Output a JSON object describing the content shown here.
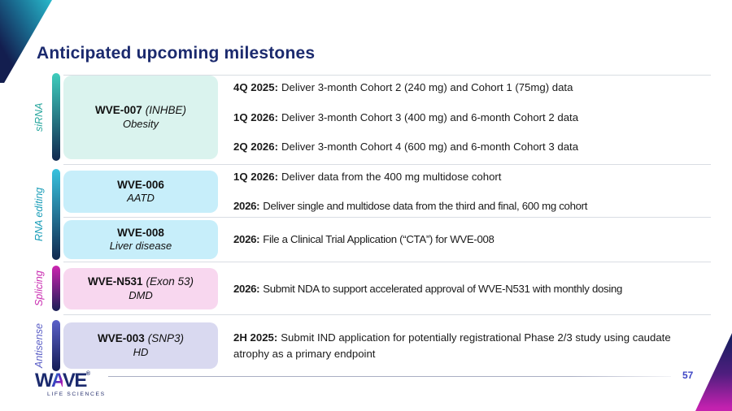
{
  "title": "Anticipated upcoming milestones",
  "page_number": "57",
  "logo": {
    "part_w": "W",
    "part_a": "A",
    "part_ve": "VE",
    "registered": "®",
    "tagline": "LIFE SCIENCES"
  },
  "colors": {
    "title_navy": "#1B2A6E",
    "divider_gray": "#D9DDE3",
    "page_number_blue": "#3E46C5"
  },
  "sections": [
    {
      "category": "siRNA",
      "color": "#2AA79E",
      "bar_top": "#3FCDBD",
      "bar_bottom": "#11294F",
      "programs": [
        {
          "name": "WVE-007",
          "gene": "(INHBE)",
          "indication": "Obesity",
          "box_color": "#DAF3EE",
          "milestones": [
            {
              "date": "4Q 2025:",
              "text": "Deliver 3-month Cohort 2 (240 mg) and Cohort 1 (75mg) data"
            },
            {
              "date": "1Q 2026:",
              "text": "Deliver 3-month Cohort 3 (400 mg) and 6-month Cohort 2 data"
            },
            {
              "date": "2Q 2026:",
              "text": "Deliver 3-month Cohort 4 (600 mg) and 6-month Cohort 3 data"
            }
          ]
        }
      ]
    },
    {
      "category": "RNA editing",
      "color": "#1A9DB8",
      "bar_top": "#38C2DE",
      "bar_bottom": "#11294F",
      "programs": [
        {
          "name": "WVE-006",
          "indication": "AATD",
          "box_color": "#C7EEFA",
          "milestones": [
            {
              "date": "1Q 2026:",
              "text": "Deliver data from the 400 mg multidose cohort"
            },
            {
              "date": "2026:",
              "text": "Deliver single and multidose data from the third and final, 600 mg cohort"
            }
          ]
        },
        {
          "name": "WVE-008",
          "indication": "Liver disease",
          "box_color": "#C7EEFA",
          "milestones": [
            {
              "date": "2026:",
              "text": "File a Clinical Trial Application (“CTA”) for WVE-008"
            }
          ]
        }
      ]
    },
    {
      "category": "Splicing",
      "color": "#C92BB0",
      "bar_top": "#CC25B0",
      "bar_bottom": "#1A1F55",
      "programs": [
        {
          "name": "WVE-N531",
          "gene": "(Exon 53)",
          "indication": "DMD",
          "box_color": "#F8D7EF",
          "milestones": [
            {
              "date": "2026:",
              "text": "Submit NDA to support accelerated approval of WVE-N531 with monthly dosing"
            }
          ]
        }
      ]
    },
    {
      "category": "Antisense",
      "color": "#5A5EC6",
      "bar_top": "#5B61C9",
      "bar_bottom": "#141C55",
      "programs": [
        {
          "name": "WVE-003",
          "gene": "(SNP3)",
          "indication": "HD",
          "box_color": "#D9D9F0",
          "milestones": [
            {
              "date": "2H 2025:",
              "text": "Submit IND application for potentially registrational Phase 2/3 study using caudate atrophy as a primary endpoint"
            }
          ]
        }
      ]
    }
  ]
}
